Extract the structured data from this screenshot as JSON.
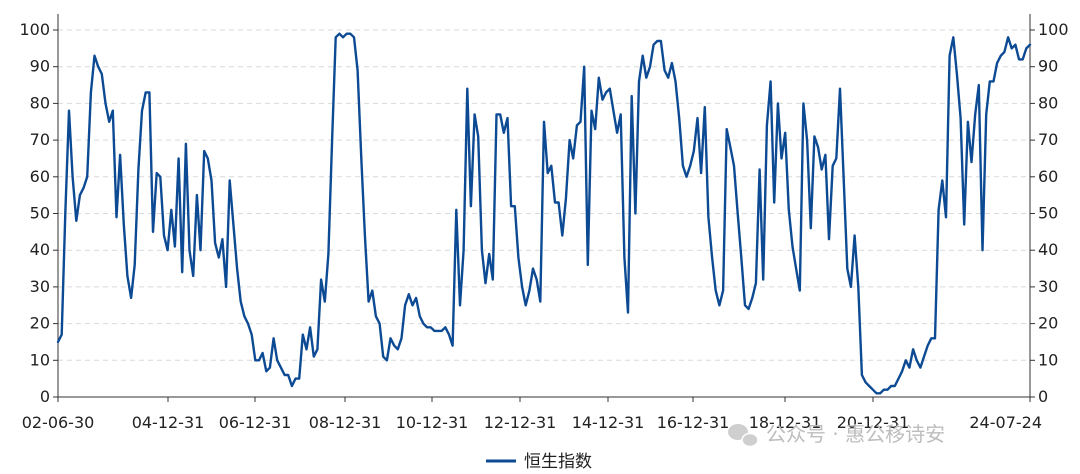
{
  "chart_data": {
    "type": "line",
    "title": "",
    "xlabel": "",
    "ylabel": "",
    "ylim": [
      0,
      100
    ],
    "grid": true,
    "legend_position": "bottom-center",
    "x_tick_labels": [
      "02-06-30",
      "04-12-31",
      "06-12-31",
      "08-12-31",
      "10-12-31",
      "12-12-31",
      "14-12-31",
      "16-12-31",
      "18-12-31",
      "20-12-31",
      "24-07-24"
    ],
    "y_ticks": [
      0,
      10,
      20,
      30,
      40,
      50,
      60,
      70,
      80,
      90,
      100
    ],
    "series": [
      {
        "name": "恒生指数",
        "color": "#0d4a94",
        "values": [
          15,
          17,
          50,
          78,
          60,
          48,
          55,
          57,
          60,
          83,
          93,
          90,
          88,
          80,
          75,
          78,
          49,
          66,
          47,
          33,
          27,
          36,
          62,
          78,
          83,
          83,
          45,
          61,
          60,
          44,
          40,
          51,
          41,
          65,
          34,
          69,
          40,
          33,
          55,
          40,
          67,
          65,
          59,
          42,
          38,
          43,
          30,
          59,
          47,
          35,
          26,
          22,
          20,
          17,
          10,
          10,
          12,
          7,
          8,
          16,
          10,
          8,
          6,
          6,
          3,
          5,
          5,
          17,
          13,
          19,
          11,
          13,
          32,
          26,
          39,
          70,
          98,
          99,
          98,
          99,
          99,
          98,
          89,
          65,
          44,
          26,
          29,
          22,
          20,
          11,
          10,
          16,
          14,
          13,
          16,
          25,
          28,
          25,
          27,
          22,
          20,
          19,
          19,
          18,
          18,
          18,
          19,
          17,
          14,
          51,
          25,
          40,
          84,
          52,
          77,
          71,
          40,
          31,
          39,
          32,
          77,
          77,
          72,
          76,
          52,
          52,
          38,
          30,
          25,
          29,
          35,
          32,
          26,
          75,
          61,
          63,
          53,
          53,
          44,
          54,
          70,
          65,
          74,
          75,
          90,
          36,
          78,
          73,
          87,
          81,
          83,
          84,
          78,
          72,
          77,
          38,
          23,
          82,
          50,
          86,
          93,
          87,
          90,
          96,
          97,
          97,
          89,
          87,
          91,
          86,
          76,
          63,
          60,
          63,
          67,
          76,
          61,
          79,
          49,
          38,
          29,
          25,
          29,
          73,
          68,
          63,
          50,
          38,
          25,
          24,
          27,
          31,
          62,
          32,
          74,
          86,
          53,
          80,
          65,
          72,
          51,
          41,
          35,
          29,
          80,
          70,
          46,
          71,
          68,
          62,
          66,
          43,
          63,
          65,
          84,
          60,
          35,
          30,
          44,
          30,
          6,
          4,
          3,
          2,
          1,
          1,
          2,
          2,
          3,
          3,
          5,
          7,
          10,
          8,
          13,
          10,
          8,
          11,
          14,
          16,
          16,
          51,
          59,
          49,
          93,
          98,
          88,
          76,
          47,
          75,
          64,
          77,
          85,
          40,
          77,
          86,
          86,
          91,
          93,
          94,
          98,
          95,
          96,
          92,
          92,
          95,
          96
        ]
      }
    ]
  },
  "legend": {
    "label": "恒生指数"
  },
  "watermark": {
    "text": "公众号 · 惠公移诗安"
  }
}
